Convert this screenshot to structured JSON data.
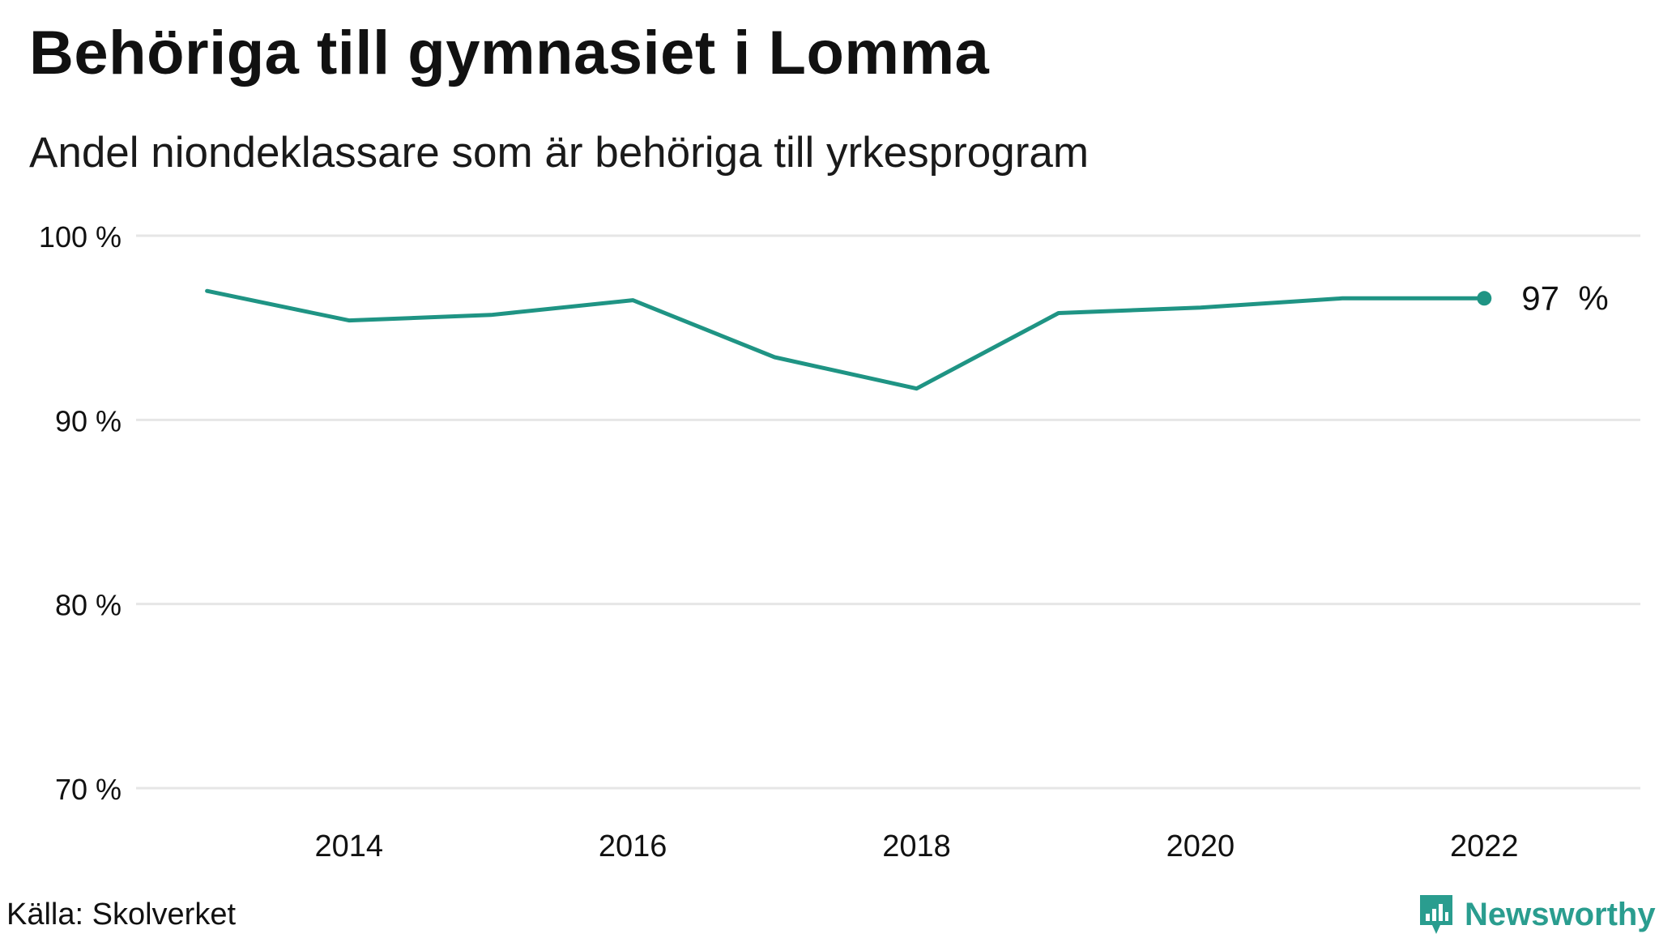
{
  "title": "Behöriga till gymnasiet i Lomma",
  "subtitle": "Andel niondeklassare som är behöriga till yrkesprogram",
  "source": "Källa: Skolverket",
  "logo_text": "Newsworthy",
  "colors": {
    "line": "#1f9484",
    "grid": "#e6e6e6",
    "brand": "#2a9d8f"
  },
  "chart_data": {
    "type": "line",
    "title": "Behöriga till gymnasiet i Lomma",
    "subtitle": "Andel niondeklassare som är behöriga till yrkesprogram",
    "xlabel": "",
    "ylabel": "",
    "x": [
      2013,
      2014,
      2015,
      2016,
      2017,
      2018,
      2019,
      2020,
      2021,
      2022
    ],
    "series": [
      {
        "values": [
          97.0,
          95.4,
          95.7,
          96.5,
          93.4,
          91.7,
          95.8,
          96.1,
          96.6,
          96.6
        ]
      }
    ],
    "ylim": [
      70,
      100
    ],
    "xlim": [
      2012.5,
      2023.1
    ],
    "yticks": [
      70,
      80,
      90,
      100
    ],
    "ytick_labels": [
      "70 %",
      "80 %",
      "90 %",
      "100 %"
    ],
    "xticks": [
      2014,
      2016,
      2018,
      2020,
      2022
    ],
    "xtick_labels": [
      "2014",
      "2016",
      "2018",
      "2020",
      "2022"
    ],
    "end_label": "97  %",
    "grid": true,
    "legend": "none"
  }
}
